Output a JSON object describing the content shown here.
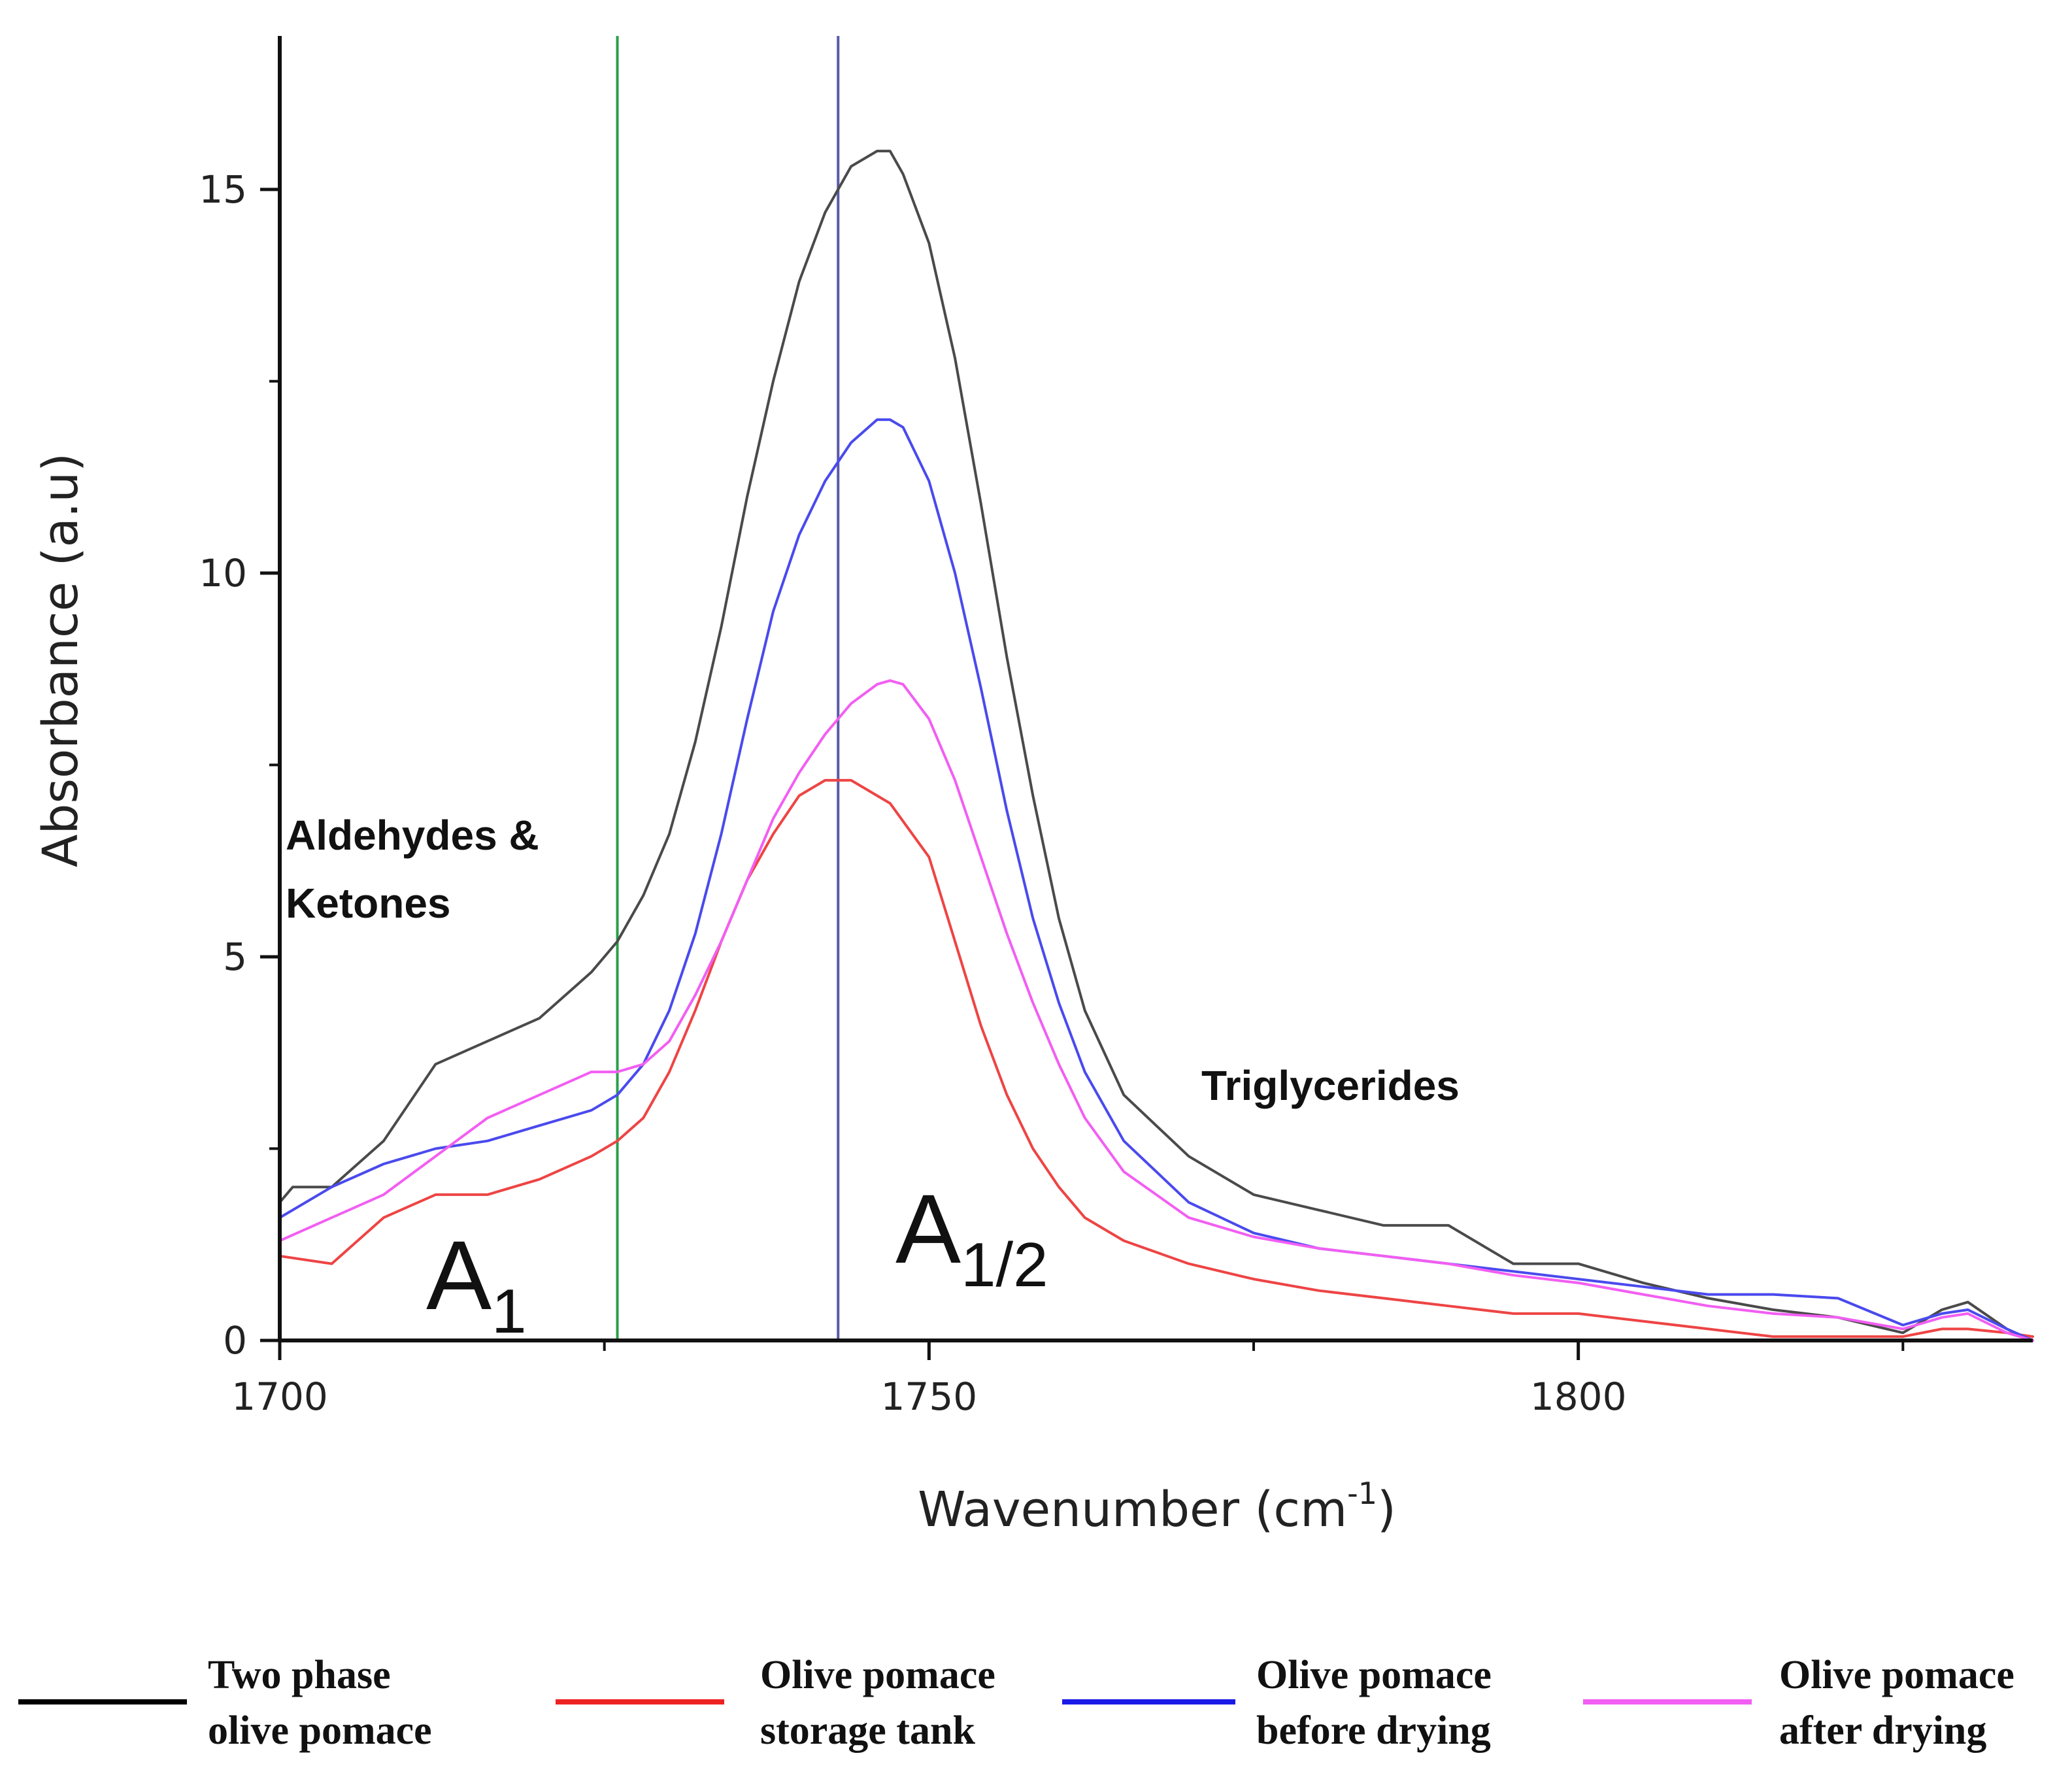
{
  "chart_data": {
    "type": "line",
    "xlabel": "Wavenumber (cm",
    "xlabel_sup": "-1",
    "xlabel_end": ")",
    "ylabel": "Absorbance (a.u)",
    "xlim": [
      1700,
      1835
    ],
    "ylim": [
      0,
      17
    ],
    "xticks": [
      1700,
      1750,
      1800
    ],
    "xtick_labels": [
      "1700",
      "1750",
      "1800"
    ],
    "yticks": [
      0,
      5,
      10,
      15
    ],
    "ytick_labels": [
      "0",
      "5",
      "10",
      "15"
    ],
    "reference_lines": [
      {
        "x": 1726,
        "color": "#2aa04a"
      },
      {
        "x": 1743,
        "color": "#5a5aaa"
      }
    ],
    "annotations": {
      "aldehydes_line1": "Aldehydes &",
      "aldehydes_line2": "Ketones",
      "triglycerides": "Triglycerides",
      "a1_main": "A",
      "a1_sub": "1",
      "a_half_main": "A",
      "a_half_sub": "1/2"
    },
    "series": [
      {
        "name": "Two phase olive pomace",
        "label_line1": "Two phase",
        "label_line2": "olive pomace",
        "color": "#4a4a4a",
        "legend_color": "#000000",
        "x": [
          1700,
          1701,
          1704,
          1708,
          1712,
          1716,
          1720,
          1724,
          1726,
          1728,
          1730,
          1732,
          1734,
          1736,
          1738,
          1740,
          1742,
          1744,
          1746,
          1747,
          1748,
          1750,
          1752,
          1754,
          1756,
          1758,
          1760,
          1762,
          1765,
          1770,
          1775,
          1780,
          1785,
          1790,
          1792,
          1795,
          1800,
          1805,
          1810,
          1815,
          1820,
          1825,
          1828,
          1830,
          1833,
          1835
        ],
        "values": [
          1.8,
          2.0,
          2.0,
          2.6,
          3.6,
          3.9,
          4.2,
          4.8,
          5.2,
          5.8,
          6.6,
          7.8,
          9.3,
          11.0,
          12.5,
          13.8,
          14.7,
          15.3,
          15.5,
          15.5,
          15.2,
          14.3,
          12.8,
          10.9,
          8.9,
          7.1,
          5.5,
          4.3,
          3.2,
          2.4,
          1.9,
          1.7,
          1.5,
          1.5,
          1.3,
          1.0,
          1.0,
          0.75,
          0.55,
          0.4,
          0.3,
          0.1,
          0.4,
          0.5,
          0.15,
          0.0
        ]
      },
      {
        "name": "Olive pomace storage tank",
        "label_line1": "Olive pomace",
        "label_line2": "storage tank",
        "color": "#ee4444",
        "legend_color": "#ee2222",
        "x": [
          1700,
          1704,
          1708,
          1712,
          1716,
          1720,
          1724,
          1726,
          1728,
          1730,
          1732,
          1734,
          1736,
          1738,
          1740,
          1742,
          1744,
          1745,
          1747,
          1750,
          1752,
          1754,
          1756,
          1758,
          1760,
          1762,
          1765,
          1770,
          1775,
          1780,
          1785,
          1790,
          1795,
          1800,
          1805,
          1810,
          1815,
          1820,
          1825,
          1828,
          1830,
          1833,
          1835
        ],
        "values": [
          1.1,
          1.0,
          1.6,
          1.9,
          1.9,
          2.1,
          2.4,
          2.6,
          2.9,
          3.5,
          4.3,
          5.2,
          6.0,
          6.6,
          7.1,
          7.3,
          7.3,
          7.2,
          7.0,
          6.3,
          5.2,
          4.1,
          3.2,
          2.5,
          2.0,
          1.6,
          1.3,
          1.0,
          0.8,
          0.65,
          0.55,
          0.45,
          0.35,
          0.35,
          0.25,
          0.15,
          0.05,
          0.05,
          0.05,
          0.15,
          0.15,
          0.1,
          0.05
        ]
      },
      {
        "name": "Olive pomace before drying",
        "label_line1": "Olive pomace",
        "label_line2": "before drying",
        "color": "#4a4aee",
        "legend_color": "#1a1ae8",
        "x": [
          1700,
          1704,
          1708,
          1712,
          1716,
          1720,
          1724,
          1726,
          1728,
          1730,
          1732,
          1734,
          1736,
          1738,
          1740,
          1742,
          1744,
          1746,
          1747,
          1748,
          1750,
          1752,
          1754,
          1756,
          1758,
          1760,
          1762,
          1765,
          1770,
          1775,
          1780,
          1785,
          1790,
          1795,
          1800,
          1805,
          1810,
          1815,
          1820,
          1825,
          1828,
          1830,
          1833,
          1835
        ],
        "values": [
          1.6,
          2.0,
          2.3,
          2.5,
          2.6,
          2.8,
          3.0,
          3.2,
          3.6,
          4.3,
          5.3,
          6.6,
          8.1,
          9.5,
          10.5,
          11.2,
          11.7,
          12.0,
          12.0,
          11.9,
          11.2,
          10.0,
          8.5,
          6.9,
          5.5,
          4.4,
          3.5,
          2.6,
          1.8,
          1.4,
          1.2,
          1.1,
          1.0,
          0.9,
          0.8,
          0.7,
          0.6,
          0.6,
          0.55,
          0.2,
          0.35,
          0.4,
          0.15,
          0.0
        ]
      },
      {
        "name": "Olive pomace after drying",
        "label_line1": "Olive pomace",
        "label_line2": "after drying",
        "color": "#f25ef2",
        "legend_color": "#f25ef2",
        "x": [
          1700,
          1704,
          1708,
          1712,
          1716,
          1720,
          1724,
          1726,
          1728,
          1730,
          1732,
          1734,
          1736,
          1738,
          1740,
          1742,
          1744,
          1746,
          1747,
          1748,
          1750,
          1752,
          1754,
          1756,
          1758,
          1760,
          1762,
          1765,
          1770,
          1775,
          1780,
          1785,
          1790,
          1795,
          1800,
          1805,
          1810,
          1815,
          1820,
          1825,
          1828,
          1830,
          1833,
          1835
        ],
        "values": [
          1.3,
          1.6,
          1.9,
          2.4,
          2.9,
          3.2,
          3.5,
          3.5,
          3.6,
          3.9,
          4.5,
          5.2,
          6.0,
          6.8,
          7.4,
          7.9,
          8.3,
          8.55,
          8.6,
          8.55,
          8.1,
          7.3,
          6.3,
          5.3,
          4.4,
          3.6,
          2.9,
          2.2,
          1.6,
          1.35,
          1.2,
          1.1,
          1.0,
          0.85,
          0.75,
          0.6,
          0.45,
          0.35,
          0.3,
          0.15,
          0.3,
          0.35,
          0.1,
          0.0
        ]
      }
    ]
  }
}
